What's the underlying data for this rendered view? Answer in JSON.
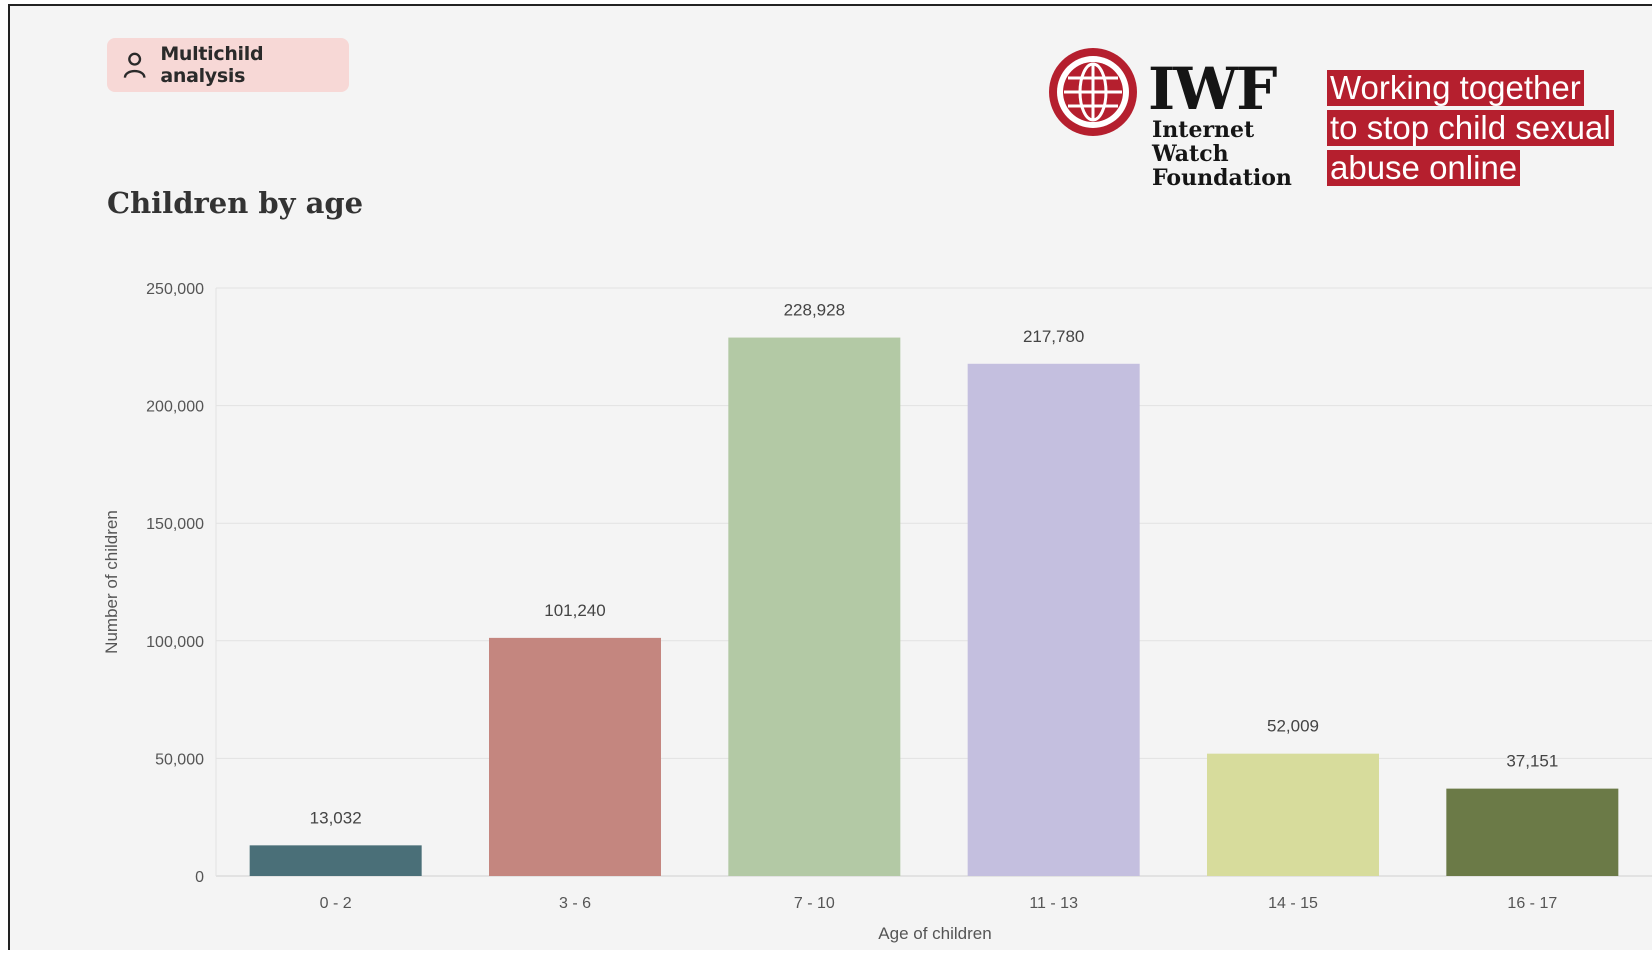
{
  "badge": {
    "label": "Multichild analysis",
    "icon": "person-icon"
  },
  "chart_title": "Children by age",
  "logo": {
    "acronym": "IWF",
    "name_lines": [
      "Internet",
      "Watch",
      "Foundation"
    ],
    "brand_color": "#b51f2e"
  },
  "tagline": [
    "Working together",
    "to stop child sexual",
    "abuse online"
  ],
  "chart_data": {
    "type": "bar",
    "title": "Children by age",
    "xlabel": "Age of children",
    "ylabel": "Number of children",
    "categories": [
      "0 - 2",
      "3 - 6",
      "7 - 10",
      "11 - 13",
      "14 - 15",
      "16 - 17"
    ],
    "values": [
      13032,
      101240,
      228928,
      217780,
      52009,
      37151
    ],
    "value_labels": [
      "13,032",
      "101,240",
      "228,928",
      "217,780",
      "52,009",
      "37,151"
    ],
    "colors": [
      "#4a6f78",
      "#c4867f",
      "#b3c9a5",
      "#c4bfdf",
      "#d7dc9c",
      "#6b7a47"
    ],
    "yticks": [
      0,
      50000,
      100000,
      150000,
      200000,
      250000
    ],
    "ytick_labels": [
      "0",
      "50,000",
      "100,000",
      "150,000",
      "200,000",
      "250,000"
    ],
    "ylim": [
      0,
      250000
    ],
    "grid": true
  }
}
